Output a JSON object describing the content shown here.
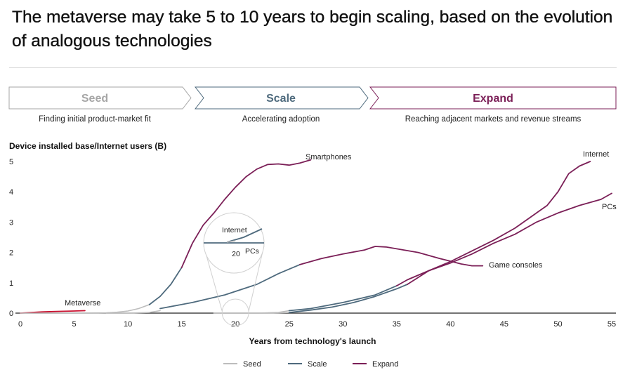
{
  "title": "The metaverse may take 5 to 10 years to begin scaling, based on the evolution of analogous technologies",
  "phases": [
    {
      "name": "Seed",
      "caption": "Finding initial product-market fit",
      "color": "#a6a6a6"
    },
    {
      "name": "Scale",
      "caption": "Accelerating adoption",
      "color": "#4e6a7d"
    },
    {
      "name": "Expand",
      "caption": "Reaching adjacent markets and revenue streams",
      "color": "#7b1f57"
    }
  ],
  "colors": {
    "seed": "#bdbdbd",
    "scale": "#4e6a7d",
    "expand": "#7b1f57",
    "metaverse": "#c8102e",
    "axis": "#222222"
  },
  "chart_data": {
    "type": "line",
    "ylabel": "Device installed base/Internet users (B)",
    "xlabel": "Years from technology's launch",
    "xlim": [
      0,
      55
    ],
    "ylim": [
      0,
      5
    ],
    "xticks": [
      "0",
      "5",
      "10",
      "15",
      "20",
      "25",
      "30",
      "35",
      "40",
      "45",
      "50",
      "55"
    ],
    "yticks": [
      "0",
      "1",
      "2",
      "3",
      "4",
      "5"
    ],
    "legend": [
      {
        "label": "Seed",
        "phase": "seed"
      },
      {
        "label": "Scale",
        "phase": "scale"
      },
      {
        "label": "Expand",
        "phase": "expand"
      }
    ],
    "series": [
      {
        "name": "Metaverse",
        "segments": [
          {
            "phase": "metaverse",
            "points": [
              [
                0,
                0.0
              ],
              [
                1,
                0.02
              ],
              [
                2,
                0.04
              ],
              [
                3,
                0.05
              ],
              [
                4,
                0.06
              ],
              [
                5,
                0.07
              ],
              [
                6,
                0.08
              ]
            ]
          }
        ]
      },
      {
        "name": "Smartphones",
        "segments": [
          {
            "phase": "seed",
            "points": [
              [
                0,
                0.0
              ],
              [
                5,
                0.0
              ],
              [
                8,
                0.01
              ],
              [
                9,
                0.03
              ],
              [
                10,
                0.07
              ],
              [
                11,
                0.15
              ],
              [
                12,
                0.28
              ]
            ]
          },
          {
            "phase": "scale",
            "points": [
              [
                12,
                0.28
              ],
              [
                13,
                0.55
              ],
              [
                14,
                0.95
              ],
              [
                15,
                1.5
              ]
            ]
          },
          {
            "phase": "expand",
            "points": [
              [
                15,
                1.5
              ],
              [
                16,
                2.3
              ],
              [
                17,
                2.9
              ],
              [
                18,
                3.3
              ],
              [
                19,
                3.75
              ],
              [
                20,
                4.15
              ],
              [
                21,
                4.5
              ],
              [
                22,
                4.75
              ],
              [
                23,
                4.9
              ],
              [
                24,
                4.92
              ],
              [
                25,
                4.88
              ],
              [
                26,
                4.95
              ],
              [
                27,
                5.05
              ]
            ]
          }
        ]
      },
      {
        "name": "Game consoles",
        "segments": [
          {
            "phase": "seed",
            "points": [
              [
                8,
                0.0
              ],
              [
                10,
                0.0
              ],
              [
                12,
                0.02
              ],
              [
                13,
                0.08
              ]
            ]
          },
          {
            "phase": "scale",
            "points": [
              [
                13,
                0.15
              ],
              [
                16,
                0.35
              ],
              [
                19,
                0.6
              ],
              [
                22,
                0.95
              ],
              [
                24,
                1.3
              ],
              [
                26,
                1.6
              ]
            ]
          },
          {
            "phase": "expand",
            "points": [
              [
                26,
                1.6
              ],
              [
                28,
                1.8
              ],
              [
                30,
                1.95
              ],
              [
                32,
                2.08
              ],
              [
                33,
                2.2
              ],
              [
                34,
                2.18
              ],
              [
                36,
                2.06
              ],
              [
                37,
                2.0
              ],
              [
                39,
                1.8
              ],
              [
                41,
                1.62
              ],
              [
                42,
                1.56
              ],
              [
                43,
                1.56
              ]
            ]
          }
        ]
      },
      {
        "name": "Internet",
        "segments": [
          {
            "phase": "seed",
            "points": [
              [
                18,
                0.0
              ],
              [
                20,
                0.0
              ],
              [
                22,
                0.0
              ],
              [
                24,
                0.02
              ],
              [
                25,
                0.08
              ]
            ]
          },
          {
            "phase": "scale",
            "points": [
              [
                25,
                0.08
              ],
              [
                27,
                0.15
              ],
              [
                30,
                0.35
              ],
              [
                33,
                0.6
              ],
              [
                35,
                0.9
              ]
            ]
          },
          {
            "phase": "expand",
            "points": [
              [
                35,
                0.9
              ],
              [
                36,
                1.1
              ],
              [
                38,
                1.4
              ],
              [
                40,
                1.7
              ],
              [
                42,
                2.05
              ],
              [
                44,
                2.4
              ],
              [
                46,
                2.8
              ],
              [
                48,
                3.3
              ],
              [
                49,
                3.55
              ],
              [
                50,
                4.0
              ],
              [
                51,
                4.6
              ],
              [
                52,
                4.85
              ],
              [
                53,
                5.0
              ]
            ]
          }
        ]
      },
      {
        "name": "PCs",
        "segments": [
          {
            "phase": "seed",
            "points": [
              [
                18,
                0.0
              ],
              [
                20,
                0.0
              ],
              [
                22,
                0.0
              ],
              [
                24,
                0.01
              ],
              [
                25,
                0.02
              ]
            ]
          },
          {
            "phase": "scale",
            "points": [
              [
                25,
                0.02
              ],
              [
                27,
                0.1
              ],
              [
                29,
                0.2
              ],
              [
                31,
                0.35
              ],
              [
                33,
                0.55
              ],
              [
                35,
                0.8
              ],
              [
                36,
                0.95
              ]
            ]
          },
          {
            "phase": "expand",
            "points": [
              [
                36,
                0.95
              ],
              [
                38,
                1.4
              ],
              [
                40,
                1.65
              ],
              [
                42,
                1.95
              ],
              [
                44,
                2.3
              ],
              [
                46,
                2.6
              ],
              [
                48,
                3.0
              ],
              [
                50,
                3.3
              ],
              [
                52,
                3.55
              ],
              [
                54,
                3.75
              ],
              [
                55,
                3.95
              ]
            ]
          }
        ]
      }
    ],
    "series_labels": [
      {
        "text": "Metaverse",
        "anchor": "metaverse"
      },
      {
        "text": "Smartphones",
        "anchor": "smartphones"
      },
      {
        "text": "Game consoles",
        "anchor": "game-consoles"
      },
      {
        "text": "Internet",
        "anchor": "internet"
      },
      {
        "text": "PCs",
        "anchor": "pcs"
      }
    ],
    "inset": {
      "x_center": 20,
      "labels": [
        "Internet",
        "PCs"
      ],
      "tick": "20"
    }
  }
}
